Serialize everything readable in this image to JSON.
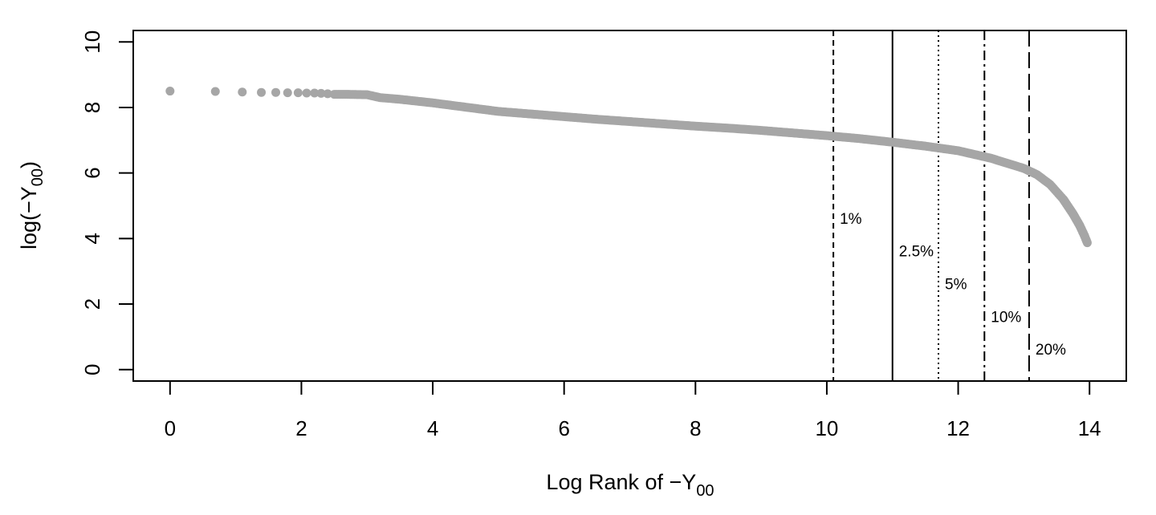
{
  "chart_data": {
    "type": "scatter",
    "xlabel": "Log Rank of −Y",
    "xlabel_sub": "00",
    "ylabel": "log(−Y",
    "ylabel_sub": "00",
    "ylabel_close": ")",
    "xlim": [
      -0.56,
      14.56
    ],
    "ylim": [
      -0.35,
      10.35
    ],
    "xticks": [
      0,
      2,
      4,
      6,
      8,
      10,
      12,
      14
    ],
    "yticks": [
      0,
      2,
      4,
      6,
      8,
      10
    ],
    "grid": false,
    "point_color": "#a6a6a6",
    "curve": [
      [
        0,
        8.5
      ],
      [
        0.69,
        8.49
      ],
      [
        1.1,
        8.47
      ],
      [
        1.39,
        8.46
      ],
      [
        1.61,
        8.46
      ],
      [
        1.79,
        8.45
      ],
      [
        1.95,
        8.45
      ],
      [
        2.08,
        8.44
      ],
      [
        2.2,
        8.44
      ],
      [
        2.3,
        8.43
      ],
      [
        2.4,
        8.42
      ],
      [
        2.5,
        8.4
      ],
      [
        2.7,
        8.4
      ],
      [
        3.0,
        8.39
      ],
      [
        3.2,
        8.3
      ],
      [
        3.5,
        8.25
      ],
      [
        4.0,
        8.14
      ],
      [
        4.5,
        8.01
      ],
      [
        5.0,
        7.88
      ],
      [
        5.5,
        7.8
      ],
      [
        6.0,
        7.72
      ],
      [
        6.5,
        7.64
      ],
      [
        7.0,
        7.57
      ],
      [
        7.5,
        7.5
      ],
      [
        8.0,
        7.43
      ],
      [
        8.5,
        7.37
      ],
      [
        9.0,
        7.3
      ],
      [
        9.5,
        7.22
      ],
      [
        10.0,
        7.14
      ],
      [
        10.5,
        7.05
      ],
      [
        11.0,
        6.94
      ],
      [
        11.5,
        6.82
      ],
      [
        12.0,
        6.68
      ],
      [
        12.5,
        6.45
      ],
      [
        13.0,
        6.14
      ],
      [
        13.2,
        5.95
      ],
      [
        13.4,
        5.65
      ],
      [
        13.6,
        5.2
      ],
      [
        13.75,
        4.75
      ],
      [
        13.85,
        4.4
      ],
      [
        13.92,
        4.1
      ],
      [
        13.97,
        3.85
      ]
    ],
    "thresholds": [
      {
        "label": "1%",
        "x": 10.1,
        "dash": "7,5",
        "label_y": 4.6
      },
      {
        "label": "2.5%",
        "x": 11.0,
        "dash": "",
        "label_y": 3.6
      },
      {
        "label": "5%",
        "x": 11.7,
        "dash": "2,4",
        "label_y": 2.6
      },
      {
        "label": "10%",
        "x": 12.4,
        "dash": "12,5,3,5",
        "label_y": 1.6
      },
      {
        "label": "20%",
        "x": 13.08,
        "dash": "20,7",
        "label_y": 0.6
      }
    ]
  }
}
